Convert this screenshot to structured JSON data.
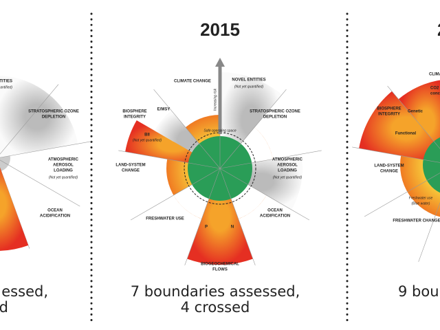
{
  "left_panel": {
    "labels": [
      "ENTITIES",
      "(Not yet quantified)",
      "STRATOSPHERIC OZONE",
      "DEPLETION",
      "ATMOSPHERIC",
      "AEROSOL",
      "LOADING",
      "(Not yet quantified)",
      "OCEAN",
      "ACIDIFICATION"
    ],
    "caption": [
      "essed,",
      "d"
    ]
  },
  "center_panel": {
    "year": "2015",
    "axis_label": "Increasing risk",
    "safe_space": "Safe operating space",
    "labels": {
      "climate": "CLIMATE CHANGE",
      "novel": [
        "NOVEL ENTITIES",
        "(Not yet quantified)"
      ],
      "ozone": [
        "STRATOSPHERIC OZONE",
        "DEPLETION"
      ],
      "aerosol": [
        "ATMOSPHERIC",
        "AEROSOL",
        "LOADING",
        "(Not yet quantified)"
      ],
      "ocean": [
        "OCEAN",
        "ACIDIFICATION"
      ],
      "biogeo": [
        "BIOGEOCHEMICAL",
        "FLOWS"
      ],
      "freshwater": "FRESHWATER USE",
      "land": [
        "LAND-SYSTEM",
        "CHANGE"
      ],
      "biosphere": [
        "BIOSPHERE",
        "INTEGRITY"
      ],
      "emsy": "E/MSY",
      "bii": [
        "BII",
        "(Not yet quantified)"
      ],
      "p": "P",
      "n": "N"
    },
    "caption": [
      "7 boundaries assessed,",
      "4 crossed"
    ]
  },
  "right_panel": {
    "year": "2",
    "labels": [
      "CLIMA",
      "CO2",
      "concentrat",
      "BIOSPHERE",
      "INTEGRITY",
      "Genetic",
      "Functional",
      "LAND-SYSTEM",
      "CHANGE",
      "Freshwater use",
      "(Blue water)",
      "FRESHWATER CHANGE"
    ],
    "caption": "9 boun"
  }
}
